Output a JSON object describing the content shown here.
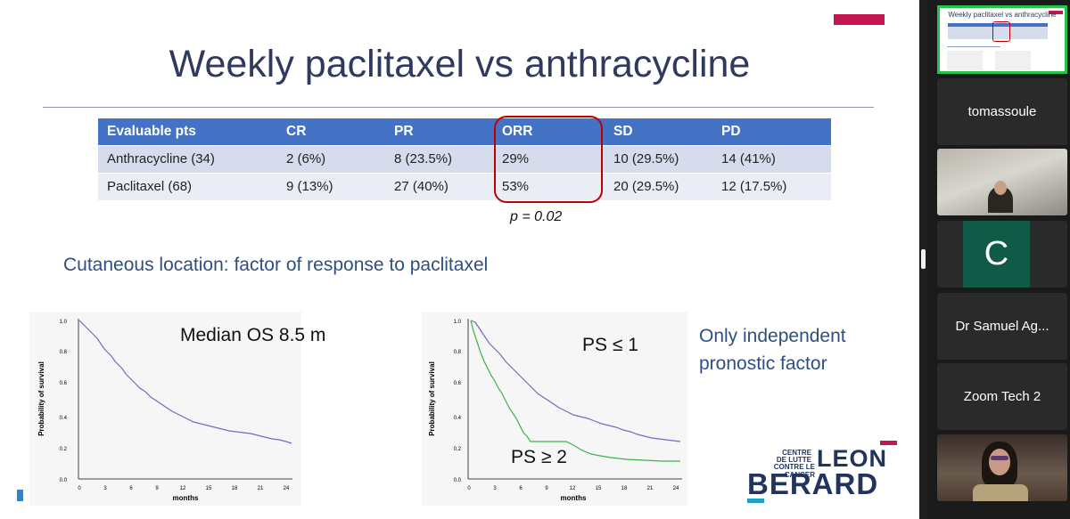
{
  "slide": {
    "title": "Weekly paclitaxel vs anthracycline",
    "table": {
      "headers": [
        "Evaluable pts",
        "CR",
        "PR",
        "ORR",
        "SD",
        "PD"
      ],
      "rows": [
        [
          "Anthracycline (34)",
          "2 (6%)",
          "8 (23.5%)",
          "29%",
          "10 (29.5%)",
          "14 (41%)"
        ],
        [
          "Paclitaxel (68)",
          "9 (13%)",
          "27 (40%)",
          "53%",
          "20 (29.5%)",
          "12 (17.5%)"
        ]
      ]
    },
    "p_value": "p = 0.02",
    "section_heading": "Cutaneous location: factor of response to paclitaxel",
    "km_left": {
      "label": "Median OS 8.5 m",
      "ylabel": "Probability of survival",
      "xlabel": "months",
      "y_ticks": [
        "0.0",
        "0.2",
        "0.4",
        "0.6",
        "0.8",
        "1.0"
      ],
      "x_ticks": [
        "0",
        "3",
        "6",
        "9",
        "12",
        "15",
        "18",
        "21",
        "24"
      ]
    },
    "km_right": {
      "ps_low_label": "PS ≤ 1",
      "ps_high_label": "PS ≥ 2",
      "ylabel": "Probability of survival",
      "xlabel": "months",
      "y_ticks": [
        "0.0",
        "0.2",
        "0.4",
        "0.6",
        "0.8",
        "1.0"
      ],
      "x_ticks": [
        "0",
        "3",
        "6",
        "9",
        "12",
        "15",
        "18",
        "21",
        "24"
      ]
    },
    "independent_note_line1": "Only independent",
    "independent_note_line2": "pronostic factor",
    "logo": {
      "small1": "CENTRE",
      "small2": "DE LUTTE",
      "small3": "CONTRE LE CANCER",
      "leon": "LEON",
      "berard": "BERARD"
    }
  },
  "colors": {
    "title": "#2f3a5e",
    "table_header": "#4472c4",
    "highlight": "#c00000",
    "accent": "#c5174f",
    "curve_blue": "#6b6fc4",
    "curve_green": "#3cb44b",
    "speaker_border": "#24c24a"
  },
  "participants": {
    "thumbnail_title": "Weekly paclitaxel vs anthracycline",
    "tiles": [
      {
        "name": "tomassoule"
      },
      {
        "name": ""
      },
      {
        "avatar_letter": "C"
      },
      {
        "name": "Dr Samuel Ag..."
      },
      {
        "name": "Zoom Tech 2"
      },
      {
        "name": ""
      }
    ]
  }
}
